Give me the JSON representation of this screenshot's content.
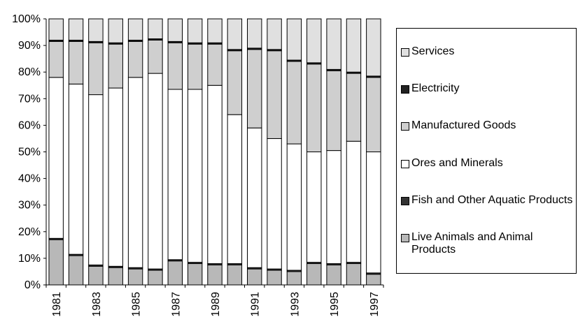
{
  "chart_data": {
    "type": "stacked_bar_100",
    "categories": [
      "1981",
      null,
      "1983",
      null,
      "1985",
      null,
      "1987",
      null,
      "1989",
      null,
      "1991",
      null,
      "1993",
      null,
      "1995",
      null,
      "1997"
    ],
    "series": [
      {
        "name": "Live Animals and Animal Products",
        "color": "#b8b8b8",
        "values": [
          17,
          11,
          7,
          6.5,
          6,
          5.5,
          9,
          8,
          7.5,
          7.5,
          6,
          5.5,
          5,
          8,
          7.5,
          8,
          4
        ]
      },
      {
        "name": "Fish and Other Aquatic Products",
        "color": "#333333",
        "values": [
          0.5,
          0.5,
          0.5,
          0.5,
          0.5,
          0.5,
          0.5,
          0.5,
          0.5,
          0.5,
          0.5,
          0.5,
          0.5,
          0.5,
          0.5,
          0.5,
          0.5
        ]
      },
      {
        "name": "Ores and Minerals",
        "color": "#ffffff",
        "values": [
          60.5,
          64,
          64,
          67,
          71.5,
          73.5,
          64,
          65,
          67,
          56,
          52.5,
          49,
          47.5,
          41.5,
          42.5,
          45.5,
          45.5
        ]
      },
      {
        "name": "Manufactured Goods",
        "color": "#cfcfcf",
        "values": [
          13.5,
          16,
          19.5,
          16.5,
          13.5,
          12.5,
          17.5,
          17,
          15.5,
          24,
          29.5,
          33,
          31,
          33,
          30,
          25.5,
          28
        ]
      },
      {
        "name": "Electricity",
        "color": "#222222",
        "values": [
          0.5,
          0.5,
          0.5,
          0.5,
          0.5,
          0.5,
          0.5,
          0.5,
          0.5,
          0.5,
          0.5,
          0.5,
          0.5,
          0.5,
          0.5,
          0.5,
          0.5
        ]
      },
      {
        "name": "Services",
        "color": "#e0e0e0",
        "values": [
          8,
          8,
          8.5,
          9,
          8,
          7.5,
          8.5,
          9,
          9,
          11.5,
          11,
          11.5,
          15.5,
          16.5,
          19,
          20,
          21.5
        ]
      }
    ],
    "ylim": [
      0,
      100
    ],
    "yticks": [
      {
        "value": 0,
        "label": "0%"
      },
      {
        "value": 10,
        "label": "10%"
      },
      {
        "value": 20,
        "label": "20%"
      },
      {
        "value": 30,
        "label": "30%"
      },
      {
        "value": 40,
        "label": "40%"
      },
      {
        "value": 50,
        "label": "50%"
      },
      {
        "value": 60,
        "label": "60%"
      },
      {
        "value": 70,
        "label": "70%"
      },
      {
        "value": 80,
        "label": "80%"
      },
      {
        "value": 90,
        "label": "90%"
      },
      {
        "value": 100,
        "label": "100%"
      }
    ],
    "legend": "right"
  }
}
